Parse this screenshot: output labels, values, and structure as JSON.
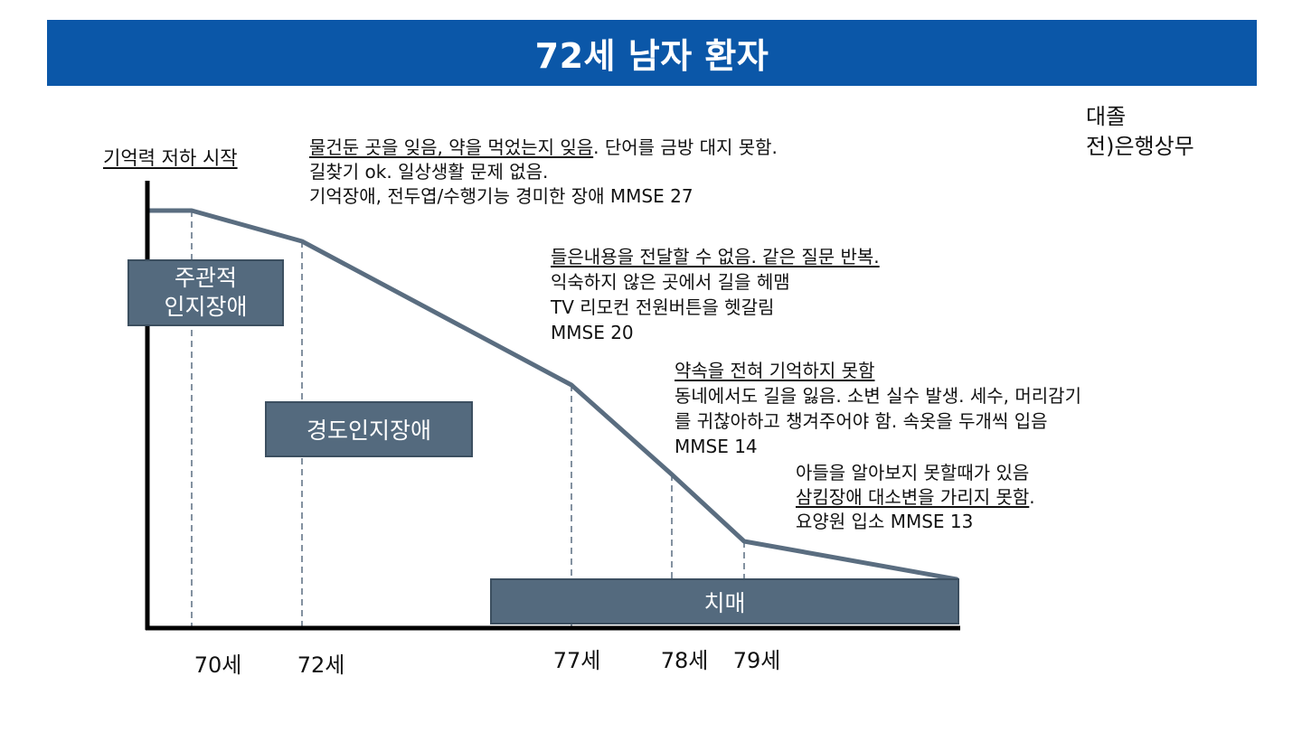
{
  "title": "72세 남자 환자",
  "y_axis_label": "기억력 저하 시작",
  "side_note": {
    "line1": "대졸",
    "line2": "전)은행상무"
  },
  "notes": {
    "n1": {
      "line1_underlined": "물건둔 곳을 잊음, 약을 먹었는지 잊음",
      "line1_rest": ". 단어를 금방 대지 못함.",
      "line2": "길찾기 ok. 일상생활 문제 없음.",
      "line3": "기억장애, 전두엽/수행기능 경미한 장애 MMSE 27"
    },
    "n2": {
      "line1_underlined": "들은내용을 전달할 수 없음. 같은 질문 반복.",
      "line2": "익숙하지 않은 곳에서 길을 헤맴",
      "line3": "TV 리모컨 전원버튼을 헷갈림",
      "line4": "MMSE 20"
    },
    "n3": {
      "line1_underlined": "약속을 전혀 기억하지 못함",
      "line2": "동네에서도 길을 잃음. 소변 실수 발생. 세수, 머리감기",
      "line3": "를 귀찮아하고 챙겨주어야 함. 속옷을 두개씩 입음",
      "line4": "MMSE 14"
    },
    "n4": {
      "line1": "아들을 알아보지 못할때가 있음",
      "line2_underlined": "삼킴장애 대소변을 가리지 못함",
      "line2_rest": ".",
      "line3": "요양원 입소 MMSE 13"
    }
  },
  "stages": {
    "subjective_line1": "주관적",
    "subjective_line2": "인지장애",
    "mild": "경도인지장애",
    "dementia": "치매"
  },
  "ages": [
    "70세",
    "72세",
    "77세",
    "78세",
    "79세"
  ],
  "colors": {
    "title_bar": "#0b57a8",
    "curve": "#5a6d80",
    "stage_box": "#546a7e"
  }
}
